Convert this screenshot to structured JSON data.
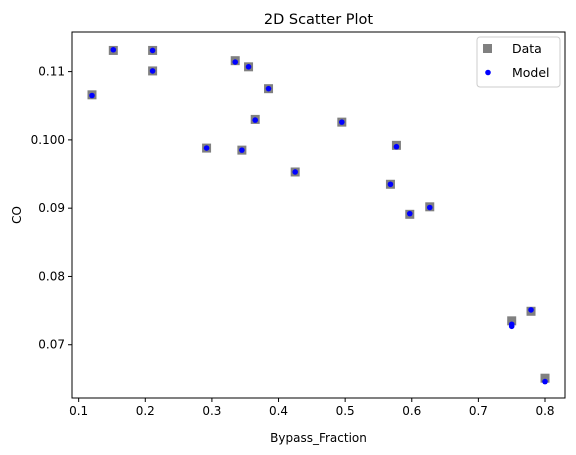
{
  "chart_data": {
    "type": "scatter",
    "title": "2D Scatter Plot",
    "xlabel": "Bypass_Fraction",
    "ylabel": "CO",
    "xlim": [
      0.09,
      0.83
    ],
    "ylim": [
      0.0622,
      0.1158
    ],
    "xticks": [
      0.1,
      0.2,
      0.3,
      0.4,
      0.5,
      0.6,
      0.7,
      0.8
    ],
    "xtick_labels": [
      "0.1",
      "0.2",
      "0.3",
      "0.4",
      "0.5",
      "0.6",
      "0.7",
      "0.8"
    ],
    "yticks": [
      0.07,
      0.08,
      0.09,
      0.1,
      0.11
    ],
    "ytick_labels": [
      "0.07",
      "0.08",
      "0.09",
      "0.100",
      "0.11"
    ],
    "grid": false,
    "legend_position": "top-right",
    "series": [
      {
        "name": "Data",
        "marker": "square",
        "color": "#808080",
        "x": [
          0.12,
          0.152,
          0.211,
          0.211,
          0.292,
          0.335,
          0.345,
          0.355,
          0.365,
          0.385,
          0.425,
          0.495,
          0.568,
          0.577,
          0.597,
          0.627,
          0.75,
          0.779,
          0.8
        ],
        "y": [
          0.1066,
          0.1131,
          0.1131,
          0.1101,
          0.0988,
          0.1116,
          0.0985,
          0.1107,
          0.103,
          0.1075,
          0.0953,
          0.1026,
          0.0935,
          0.0992,
          0.0891,
          0.0902,
          0.0735,
          0.0749,
          0.0651
        ]
      },
      {
        "name": "Model",
        "marker": "circle",
        "color": "#0000ff",
        "x": [
          0.12,
          0.152,
          0.211,
          0.211,
          0.292,
          0.335,
          0.345,
          0.355,
          0.365,
          0.385,
          0.425,
          0.495,
          0.568,
          0.577,
          0.597,
          0.627,
          0.75,
          0.75,
          0.779,
          0.8
        ],
        "y": [
          0.1065,
          0.1132,
          0.1131,
          0.1101,
          0.0988,
          0.1114,
          0.0985,
          0.1107,
          0.1029,
          0.1075,
          0.0953,
          0.1026,
          0.0935,
          0.099,
          0.0892,
          0.0901,
          0.073,
          0.0727,
          0.0751,
          0.0646
        ]
      }
    ]
  }
}
